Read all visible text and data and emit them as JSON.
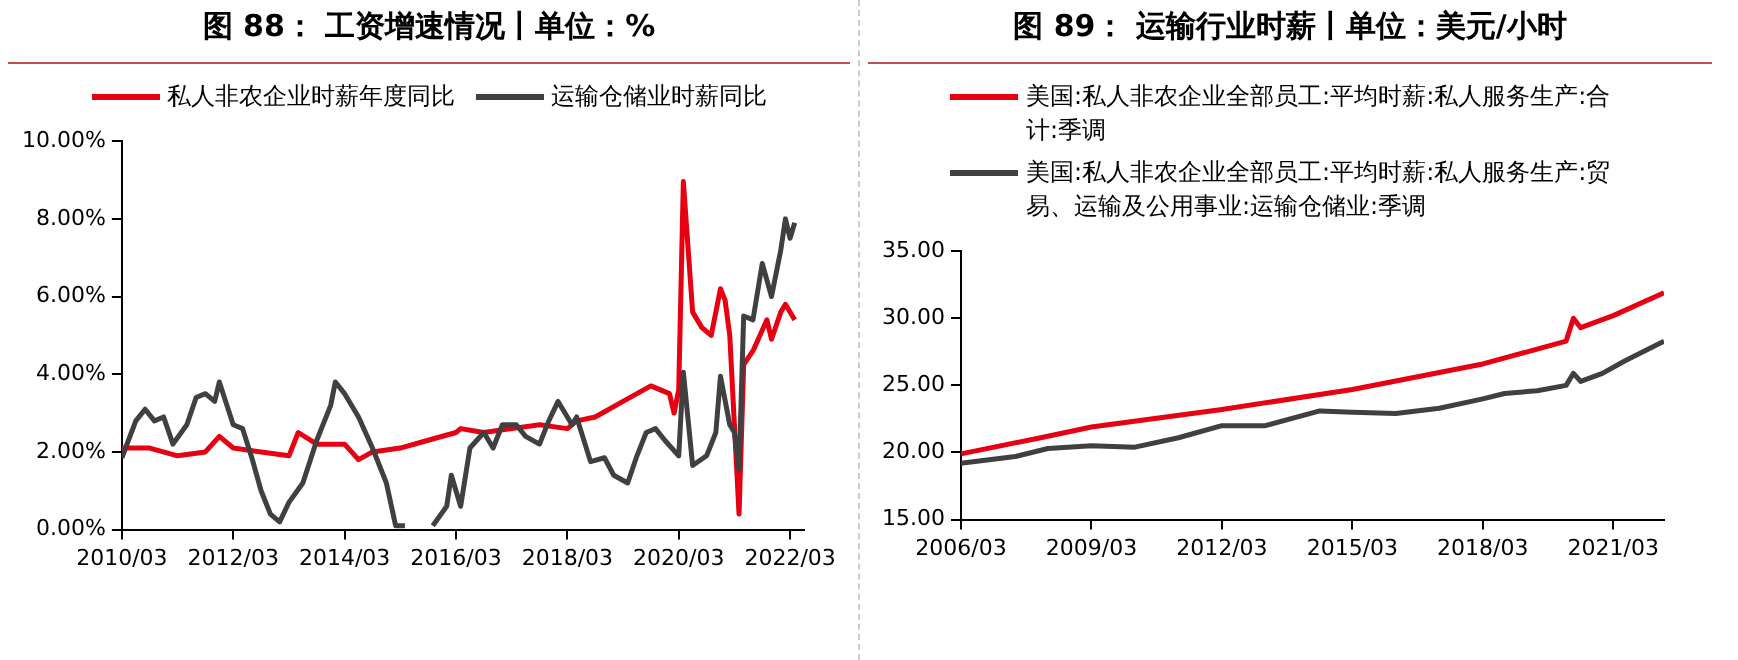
{
  "chart_data": [
    {
      "type": "line",
      "title": "图 88： 工资增速情况丨单位：%",
      "legend": "top",
      "grid": false,
      "marker": "none",
      "line_style": "solid",
      "xlim": [
        "2010-03",
        "2022-06"
      ],
      "xticks": [
        {
          "value": "2010-03",
          "label": "2010/03"
        },
        {
          "value": "2012-03",
          "label": "2012/03"
        },
        {
          "value": "2014-03",
          "label": "2014/03"
        },
        {
          "value": "2016-03",
          "label": "2016/03"
        },
        {
          "value": "2018-03",
          "label": "2018/03"
        },
        {
          "value": "2020-03",
          "label": "2020/03"
        },
        {
          "value": "2022-03",
          "label": "2022/03"
        }
      ],
      "ylim": [
        0,
        10
      ],
      "yticks": [
        {
          "value": 0,
          "label": "0.00%"
        },
        {
          "value": 2,
          "label": "2.00%"
        },
        {
          "value": 4,
          "label": "4.00%"
        },
        {
          "value": 6,
          "label": "6.00%"
        },
        {
          "value": 8,
          "label": "8.00%"
        },
        {
          "value": 10,
          "label": "10.00%"
        }
      ],
      "series": [
        {
          "name": "私人非农企业时薪年度同比",
          "color": "#e60012",
          "x": [
            "2010-03",
            "2010-09",
            "2011-03",
            "2011-09",
            "2011-12",
            "2012-03",
            "2012-09",
            "2013-03",
            "2013-05",
            "2013-09",
            "2014-03",
            "2014-06",
            "2014-09",
            "2015-03",
            "2015-09",
            "2016-03",
            "2016-04",
            "2016-09",
            "2017-03",
            "2017-09",
            "2018-03",
            "2018-05",
            "2018-09",
            "2019-03",
            "2019-09",
            "2020-01",
            "2020-02",
            "2020-03",
            "2020-04",
            "2020-06",
            "2020-08",
            "2020-10",
            "2020-12",
            "2021-01",
            "2021-02",
            "2021-04",
            "2021-05",
            "2021-07",
            "2021-10",
            "2021-11",
            "2022-01",
            "2022-02",
            "2022-04"
          ],
          "values": [
            2.1,
            2.1,
            1.9,
            2.0,
            2.4,
            2.1,
            2.0,
            1.9,
            2.5,
            2.2,
            2.2,
            1.8,
            2.0,
            2.1,
            2.3,
            2.5,
            2.6,
            2.5,
            2.6,
            2.7,
            2.6,
            2.8,
            2.9,
            3.3,
            3.7,
            3.5,
            3.0,
            3.6,
            8.96,
            5.6,
            5.2,
            5.0,
            6.2,
            5.9,
            5.0,
            0.4,
            4.25,
            4.6,
            5.4,
            4.9,
            5.6,
            5.8,
            5.4
          ]
        },
        {
          "name": "运输仓储业时薪同比",
          "color": "#404040",
          "x": [
            "2010-03",
            "2010-06",
            "2010-08",
            "2010-10",
            "2010-12",
            "2011-02",
            "2011-05",
            "2011-07",
            "2011-09",
            "2011-11",
            "2011-12",
            "2012-03",
            "2012-05",
            "2012-07",
            "2012-09",
            "2012-11",
            "2013-01",
            "2013-03",
            "2013-06",
            "2013-09",
            "2013-12",
            "2014-01",
            "2014-03",
            "2014-06",
            "2014-09",
            "2014-12",
            "2015-02",
            "2015-04",
            "2015-07",
            "2015-10",
            "2016-01",
            "2016-02",
            "2016-04",
            "2016-06",
            "2016-09",
            "2016-11",
            "2017-01",
            "2017-04",
            "2017-06",
            "2017-09",
            "2017-11",
            "2018-01",
            "2018-04",
            "2018-05",
            "2018-08",
            "2018-11",
            "2019-01",
            "2019-04",
            "2019-06",
            "2019-08",
            "2019-10",
            "2019-12",
            "2020-03",
            "2020-04",
            "2020-06",
            "2020-09",
            "2020-11",
            "2020-12",
            "2021-02",
            "2021-03",
            "2021-04",
            "2021-05",
            "2021-07",
            "2021-09",
            "2021-11",
            "2022-01",
            "2022-02",
            "2022-03",
            "2022-04"
          ],
          "values": [
            1.85,
            2.8,
            3.1,
            2.8,
            2.9,
            2.2,
            2.7,
            3.4,
            3.5,
            3.3,
            3.8,
            2.7,
            2.6,
            1.85,
            1.0,
            0.4,
            0.2,
            0.7,
            1.2,
            2.3,
            3.2,
            3.8,
            3.5,
            2.9,
            2.1,
            1.2,
            0.1,
            0.1,
            null,
            0.1,
            0.6,
            1.4,
            0.6,
            2.1,
            2.5,
            2.1,
            2.7,
            2.7,
            2.4,
            2.2,
            2.8,
            3.3,
            2.7,
            2.9,
            1.75,
            1.85,
            1.4,
            1.2,
            1.9,
            2.5,
            2.6,
            2.3,
            1.9,
            4.05,
            1.65,
            1.9,
            2.5,
            3.95,
            2.7,
            2.5,
            1.55,
            5.5,
            5.4,
            6.85,
            6.0,
            7.2,
            8.0,
            7.5,
            7.9
          ]
        }
      ]
    },
    {
      "type": "line",
      "title": "图 89： 运输行业时薪丨单位：美元/小时",
      "legend": "top",
      "grid": false,
      "marker": "none",
      "line_style": "solid",
      "xlim": [
        "2006-03",
        "2022-05"
      ],
      "xticks": [
        {
          "value": "2006-03",
          "label": "2006/03"
        },
        {
          "value": "2009-03",
          "label": "2009/03"
        },
        {
          "value": "2012-03",
          "label": "2012/03"
        },
        {
          "value": "2015-03",
          "label": "2015/03"
        },
        {
          "value": "2018-03",
          "label": "2018/03"
        },
        {
          "value": "2021-03",
          "label": "2021/03"
        }
      ],
      "ylim": [
        15,
        35
      ],
      "yticks": [
        {
          "value": 15,
          "label": "15.00"
        },
        {
          "value": 20,
          "label": "20.00"
        },
        {
          "value": 25,
          "label": "25.00"
        },
        {
          "value": 30,
          "label": "30.00"
        },
        {
          "value": 35,
          "label": "35.00"
        }
      ],
      "series": [
        {
          "name": "美国:私人非农企业全部员工:平均时薪:私人服务生产:合计:季调",
          "color": "#e60012",
          "x": [
            "2006-03",
            "2008-01",
            "2009-03",
            "2012-03",
            "2015-03",
            "2018-03",
            "2019-06",
            "2020-02",
            "2020-04",
            "2020-06",
            "2020-12",
            "2021-03",
            "2022-05"
          ],
          "values": [
            19.9,
            21.1,
            21.9,
            23.2,
            24.7,
            26.6,
            27.7,
            28.3,
            30.0,
            29.3,
            29.9,
            30.2,
            31.9
          ]
        },
        {
          "name": "美国:私人非农企业全部员工:平均时薪:私人服务生产:贸易、运输及公用事业:运输仓储业:季调",
          "color": "#404040",
          "x": [
            "2006-03",
            "2007-06",
            "2008-03",
            "2009-03",
            "2010-03",
            "2011-03",
            "2012-03",
            "2013-03",
            "2014-06",
            "2015-03",
            "2016-03",
            "2017-03",
            "2018-03",
            "2018-09",
            "2019-06",
            "2020-02",
            "2020-04",
            "2020-06",
            "2020-12",
            "2021-06",
            "2022-05"
          ],
          "values": [
            19.2,
            19.7,
            20.3,
            20.5,
            20.4,
            21.1,
            22.0,
            22.0,
            23.1,
            23.0,
            22.9,
            23.3,
            24.0,
            24.4,
            24.6,
            25.0,
            25.9,
            25.3,
            25.9,
            26.8,
            28.3
          ]
        }
      ]
    }
  ]
}
